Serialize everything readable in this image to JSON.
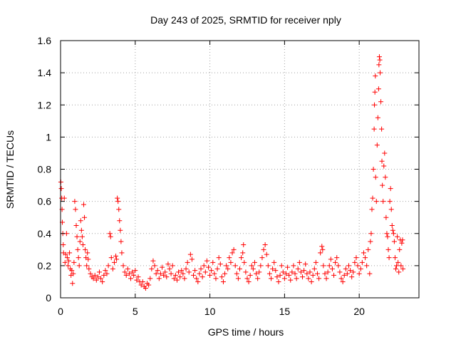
{
  "chart_data": {
    "type": "scatter",
    "title": "Day 243 of 2025, SRMTID for receiver nply",
    "xlabel": "GPS time / hours",
    "ylabel": "SRMTID / TECUs",
    "xlim": [
      0,
      24
    ],
    "ylim": [
      0,
      1.6
    ],
    "x_ticks": [
      0,
      5,
      10,
      15,
      20
    ],
    "x_tick_labels": [
      "0",
      "5",
      "10",
      "15",
      "20"
    ],
    "y_ticks": [
      0,
      0.2,
      0.4,
      0.6,
      0.8,
      1.0,
      1.2,
      1.4,
      1.6
    ],
    "y_tick_labels": [
      "0",
      "0.2",
      "0.4",
      "0.6",
      "0.8",
      "1",
      "1.2",
      "1.4",
      "1.6"
    ],
    "grid": true,
    "marker": "plus",
    "color": "#ff0000",
    "series": [
      {
        "name": "SRMTID",
        "points": [
          [
            0.02,
            0.72
          ],
          [
            0.05,
            0.68
          ],
          [
            0.08,
            0.62
          ],
          [
            0.1,
            0.55
          ],
          [
            0.12,
            0.47
          ],
          [
            0.15,
            0.4
          ],
          [
            0.18,
            0.33
          ],
          [
            0.2,
            0.28
          ],
          [
            0.25,
            0.62
          ],
          [
            0.3,
            0.22
          ],
          [
            0.35,
            0.27
          ],
          [
            0.4,
            0.4
          ],
          [
            0.45,
            0.25
          ],
          [
            0.5,
            0.2
          ],
          [
            0.55,
            0.23
          ],
          [
            0.6,
            0.28
          ],
          [
            0.65,
            0.18
          ],
          [
            0.7,
            0.14
          ],
          [
            0.75,
            0.17
          ],
          [
            0.8,
            0.09
          ],
          [
            0.85,
            0.15
          ],
          [
            0.9,
            0.22
          ],
          [
            0.95,
            0.6
          ],
          [
            1.0,
            0.55
          ],
          [
            1.05,
            0.45
          ],
          [
            1.1,
            0.38
          ],
          [
            1.15,
            0.3
          ],
          [
            1.2,
            0.25
          ],
          [
            1.25,
            0.2
          ],
          [
            1.3,
            0.35
          ],
          [
            1.35,
            0.48
          ],
          [
            1.4,
            0.42
          ],
          [
            1.45,
            0.38
          ],
          [
            1.5,
            0.33
          ],
          [
            1.55,
            0.58
          ],
          [
            1.6,
            0.5
          ],
          [
            1.65,
            0.3
          ],
          [
            1.7,
            0.25
          ],
          [
            1.75,
            0.2
          ],
          [
            1.8,
            0.28
          ],
          [
            1.85,
            0.24
          ],
          [
            1.9,
            0.18
          ],
          [
            2.0,
            0.15
          ],
          [
            2.1,
            0.13
          ],
          [
            2.2,
            0.12
          ],
          [
            2.3,
            0.14
          ],
          [
            2.4,
            0.11
          ],
          [
            2.5,
            0.13
          ],
          [
            2.6,
            0.16
          ],
          [
            2.7,
            0.12
          ],
          [
            2.8,
            0.1
          ],
          [
            2.9,
            0.14
          ],
          [
            3.0,
            0.17
          ],
          [
            3.1,
            0.15
          ],
          [
            3.2,
            0.2
          ],
          [
            3.3,
            0.4
          ],
          [
            3.35,
            0.38
          ],
          [
            3.4,
            0.25
          ],
          [
            3.5,
            0.18
          ],
          [
            3.6,
            0.22
          ],
          [
            3.7,
            0.26
          ],
          [
            3.75,
            0.24
          ],
          [
            3.8,
            0.62
          ],
          [
            3.85,
            0.6
          ],
          [
            3.9,
            0.55
          ],
          [
            3.95,
            0.48
          ],
          [
            4.0,
            0.42
          ],
          [
            4.05,
            0.35
          ],
          [
            4.1,
            0.28
          ],
          [
            4.2,
            0.2
          ],
          [
            4.3,
            0.16
          ],
          [
            4.4,
            0.14
          ],
          [
            4.5,
            0.18
          ],
          [
            4.6,
            0.15
          ],
          [
            4.7,
            0.12
          ],
          [
            4.8,
            0.16
          ],
          [
            4.9,
            0.14
          ],
          [
            5.0,
            0.17
          ],
          [
            5.1,
            0.11
          ],
          [
            5.2,
            0.13
          ],
          [
            5.3,
            0.1
          ],
          [
            5.4,
            0.08
          ],
          [
            5.5,
            0.1
          ],
          [
            5.6,
            0.07
          ],
          [
            5.7,
            0.06
          ],
          [
            5.8,
            0.09
          ],
          [
            5.9,
            0.08
          ],
          [
            6.0,
            0.12
          ],
          [
            6.1,
            0.18
          ],
          [
            6.2,
            0.23
          ],
          [
            6.3,
            0.2
          ],
          [
            6.4,
            0.15
          ],
          [
            6.5,
            0.17
          ],
          [
            6.6,
            0.12
          ],
          [
            6.7,
            0.15
          ],
          [
            6.8,
            0.19
          ],
          [
            6.9,
            0.14
          ],
          [
            7.0,
            0.16
          ],
          [
            7.1,
            0.13
          ],
          [
            7.2,
            0.21
          ],
          [
            7.3,
            0.18
          ],
          [
            7.4,
            0.15
          ],
          [
            7.5,
            0.2
          ],
          [
            7.6,
            0.12
          ],
          [
            7.7,
            0.14
          ],
          [
            7.8,
            0.11
          ],
          [
            7.9,
            0.16
          ],
          [
            8.0,
            0.13
          ],
          [
            8.1,
            0.17
          ],
          [
            8.2,
            0.15
          ],
          [
            8.3,
            0.12
          ],
          [
            8.4,
            0.18
          ],
          [
            8.5,
            0.22
          ],
          [
            8.6,
            0.16
          ],
          [
            8.7,
            0.27
          ],
          [
            8.8,
            0.24
          ],
          [
            8.9,
            0.14
          ],
          [
            9.0,
            0.17
          ],
          [
            9.1,
            0.12
          ],
          [
            9.2,
            0.1
          ],
          [
            9.3,
            0.15
          ],
          [
            9.4,
            0.18
          ],
          [
            9.5,
            0.13
          ],
          [
            9.6,
            0.2
          ],
          [
            9.7,
            0.16
          ],
          [
            9.8,
            0.23
          ],
          [
            9.9,
            0.19
          ],
          [
            10.0,
            0.14
          ],
          [
            10.1,
            0.17
          ],
          [
            10.2,
            0.22
          ],
          [
            10.3,
            0.15
          ],
          [
            10.4,
            0.12
          ],
          [
            10.5,
            0.18
          ],
          [
            10.6,
            0.25
          ],
          [
            10.7,
            0.21
          ],
          [
            10.8,
            0.13
          ],
          [
            10.9,
            0.1
          ],
          [
            11.0,
            0.15
          ],
          [
            11.1,
            0.2
          ],
          [
            11.2,
            0.18
          ],
          [
            11.3,
            0.25
          ],
          [
            11.4,
            0.22
          ],
          [
            11.5,
            0.28
          ],
          [
            11.6,
            0.3
          ],
          [
            11.7,
            0.2
          ],
          [
            11.8,
            0.15
          ],
          [
            11.9,
            0.12
          ],
          [
            12.0,
            0.18
          ],
          [
            12.1,
            0.25
          ],
          [
            12.2,
            0.28
          ],
          [
            12.25,
            0.33
          ],
          [
            12.3,
            0.22
          ],
          [
            12.4,
            0.16
          ],
          [
            12.5,
            0.12
          ],
          [
            12.6,
            0.1
          ],
          [
            12.7,
            0.14
          ],
          [
            12.8,
            0.2
          ],
          [
            12.9,
            0.18
          ],
          [
            13.0,
            0.22
          ],
          [
            13.1,
            0.15
          ],
          [
            13.2,
            0.12
          ],
          [
            13.3,
            0.16
          ],
          [
            13.4,
            0.2
          ],
          [
            13.5,
            0.25
          ],
          [
            13.6,
            0.3
          ],
          [
            13.7,
            0.33
          ],
          [
            13.8,
            0.27
          ],
          [
            13.9,
            0.2
          ],
          [
            14.0,
            0.15
          ],
          [
            14.1,
            0.12
          ],
          [
            14.2,
            0.18
          ],
          [
            14.3,
            0.22
          ],
          [
            14.4,
            0.17
          ],
          [
            14.5,
            0.13
          ],
          [
            14.6,
            0.1
          ],
          [
            14.7,
            0.14
          ],
          [
            14.8,
            0.2
          ],
          [
            14.9,
            0.16
          ],
          [
            15.0,
            0.12
          ],
          [
            15.1,
            0.15
          ],
          [
            15.2,
            0.19
          ],
          [
            15.3,
            0.14
          ],
          [
            15.4,
            0.11
          ],
          [
            15.5,
            0.16
          ],
          [
            15.6,
            0.2
          ],
          [
            15.7,
            0.15
          ],
          [
            15.8,
            0.12
          ],
          [
            15.9,
            0.18
          ],
          [
            16.0,
            0.22
          ],
          [
            16.1,
            0.16
          ],
          [
            16.2,
            0.13
          ],
          [
            16.3,
            0.17
          ],
          [
            16.4,
            0.21
          ],
          [
            16.5,
            0.15
          ],
          [
            16.6,
            0.12
          ],
          [
            16.7,
            0.16
          ],
          [
            16.8,
            0.1
          ],
          [
            16.9,
            0.14
          ],
          [
            17.0,
            0.18
          ],
          [
            17.1,
            0.22
          ],
          [
            17.2,
            0.15
          ],
          [
            17.3,
            0.12
          ],
          [
            17.4,
            0.28
          ],
          [
            17.5,
            0.32
          ],
          [
            17.55,
            0.3
          ],
          [
            17.6,
            0.2
          ],
          [
            17.7,
            0.15
          ],
          [
            17.8,
            0.12
          ],
          [
            17.9,
            0.16
          ],
          [
            18.0,
            0.2
          ],
          [
            18.1,
            0.24
          ],
          [
            18.2,
            0.18
          ],
          [
            18.3,
            0.14
          ],
          [
            18.4,
            0.22
          ],
          [
            18.5,
            0.25
          ],
          [
            18.6,
            0.2
          ],
          [
            18.7,
            0.16
          ],
          [
            18.8,
            0.12
          ],
          [
            18.9,
            0.1
          ],
          [
            19.0,
            0.14
          ],
          [
            19.1,
            0.18
          ],
          [
            19.2,
            0.15
          ],
          [
            19.3,
            0.2
          ],
          [
            19.4,
            0.17
          ],
          [
            19.5,
            0.13
          ],
          [
            19.6,
            0.16
          ],
          [
            19.7,
            0.22
          ],
          [
            19.8,
            0.25
          ],
          [
            19.9,
            0.2
          ],
          [
            20.0,
            0.15
          ],
          [
            20.1,
            0.18
          ],
          [
            20.2,
            0.22
          ],
          [
            20.3,
            0.28
          ],
          [
            20.4,
            0.25
          ],
          [
            20.5,
            0.2
          ],
          [
            20.6,
            0.3
          ],
          [
            20.7,
            0.15
          ],
          [
            20.75,
            0.35
          ],
          [
            20.8,
            0.4
          ],
          [
            20.85,
            0.55
          ],
          [
            20.9,
            0.62
          ],
          [
            20.95,
            0.8
          ],
          [
            21.0,
            1.05
          ],
          [
            21.02,
            1.2
          ],
          [
            21.05,
            1.28
          ],
          [
            21.08,
            1.38
          ],
          [
            21.1,
            0.75
          ],
          [
            21.15,
            0.6
          ],
          [
            21.2,
            0.95
          ],
          [
            21.25,
            1.12
          ],
          [
            21.3,
            1.3
          ],
          [
            21.32,
            1.45
          ],
          [
            21.35,
            1.5
          ],
          [
            21.38,
            1.48
          ],
          [
            21.4,
            1.4
          ],
          [
            21.45,
            1.22
          ],
          [
            21.5,
            1.05
          ],
          [
            21.52,
            0.85
          ],
          [
            21.55,
            0.7
          ],
          [
            21.6,
            0.6
          ],
          [
            21.65,
            0.82
          ],
          [
            21.7,
            0.9
          ],
          [
            21.75,
            0.75
          ],
          [
            21.8,
            0.5
          ],
          [
            21.85,
            0.4
          ],
          [
            21.9,
            0.38
          ],
          [
            21.95,
            0.3
          ],
          [
            22.0,
            0.25
          ],
          [
            22.05,
            0.6
          ],
          [
            22.1,
            0.68
          ],
          [
            22.15,
            0.55
          ],
          [
            22.2,
            0.45
          ],
          [
            22.25,
            0.42
          ],
          [
            22.3,
            0.4
          ],
          [
            22.35,
            0.35
          ],
          [
            22.4,
            0.25
          ],
          [
            22.45,
            0.18
          ],
          [
            22.5,
            0.2
          ],
          [
            22.55,
            0.38
          ],
          [
            22.6,
            0.22
          ],
          [
            22.65,
            0.16
          ],
          [
            22.7,
            0.3
          ],
          [
            22.75,
            0.36
          ],
          [
            22.8,
            0.2
          ],
          [
            22.85,
            0.34
          ],
          [
            22.9,
            0.36
          ],
          [
            22.93,
            0.18
          ]
        ]
      }
    ]
  }
}
